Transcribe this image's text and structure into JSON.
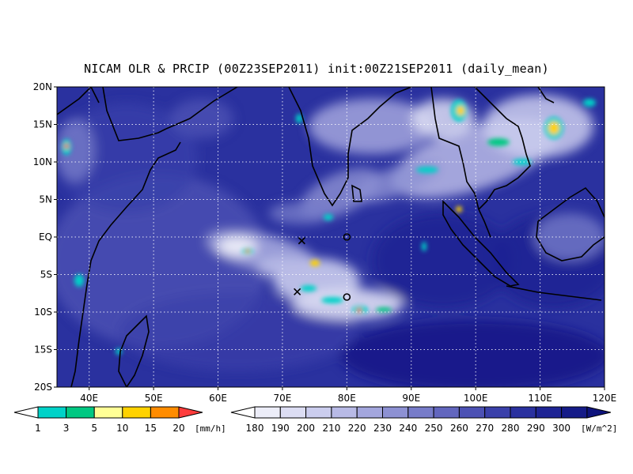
{
  "title": "NICAM OLR & PRCIP (00Z23SEP2011) init:00Z21SEP2011 (daily_mean)",
  "map": {
    "lon_range": [
      35,
      120
    ],
    "lat_range": [
      -20,
      20
    ],
    "lon_ticks": [
      {
        "value": 40,
        "label": "40E"
      },
      {
        "value": 50,
        "label": "50E"
      },
      {
        "value": 60,
        "label": "60E"
      },
      {
        "value": 70,
        "label": "70E"
      },
      {
        "value": 80,
        "label": "80E"
      },
      {
        "value": 90,
        "label": "90E"
      },
      {
        "value": 100,
        "label": "100E"
      },
      {
        "value": 110,
        "label": "110E"
      },
      {
        "value": 120,
        "label": "120E"
      }
    ],
    "lat_ticks": [
      {
        "value": 20,
        "label": "20N"
      },
      {
        "value": 15,
        "label": "15N"
      },
      {
        "value": 10,
        "label": "10N"
      },
      {
        "value": 5,
        "label": "5N"
      },
      {
        "value": 0,
        "label": "EQ"
      },
      {
        "value": -5,
        "label": "5S"
      },
      {
        "value": -10,
        "label": "10S"
      },
      {
        "value": -15,
        "label": "15S"
      },
      {
        "value": -20,
        "label": "20S"
      }
    ],
    "grid": "dotted",
    "markers": [
      {
        "type": "x",
        "lon": 73,
        "lat": -0.5
      },
      {
        "type": "circle",
        "lon": 80,
        "lat": 0
      },
      {
        "type": "x",
        "lon": 72.3,
        "lat": -7.3
      },
      {
        "type": "circle",
        "lon": 80,
        "lat": -8
      }
    ]
  },
  "precip_colorbar": {
    "labels": [
      "1",
      "3",
      "5",
      "10",
      "15",
      "20"
    ],
    "unit": "[mm/h]",
    "colors": [
      "#00d2c8",
      "#00c882",
      "#ffff96",
      "#ffd200",
      "#ff8c00",
      "#ff3c3c"
    ]
  },
  "olr_colorbar": {
    "labels": [
      "180",
      "190",
      "200",
      "210",
      "220",
      "230",
      "240",
      "250",
      "260",
      "270",
      "280",
      "290",
      "300"
    ],
    "unit": "[W/m^2]",
    "colors": [
      "#ecedf8",
      "#dcddf3",
      "#cbcdee",
      "#b8bae6",
      "#a3a6dd",
      "#8d91d3",
      "#777cc9",
      "#6266be",
      "#4c51b4",
      "#3a40aa",
      "#2a319f",
      "#1e2494",
      "#151b88",
      "#0e137c"
    ]
  }
}
